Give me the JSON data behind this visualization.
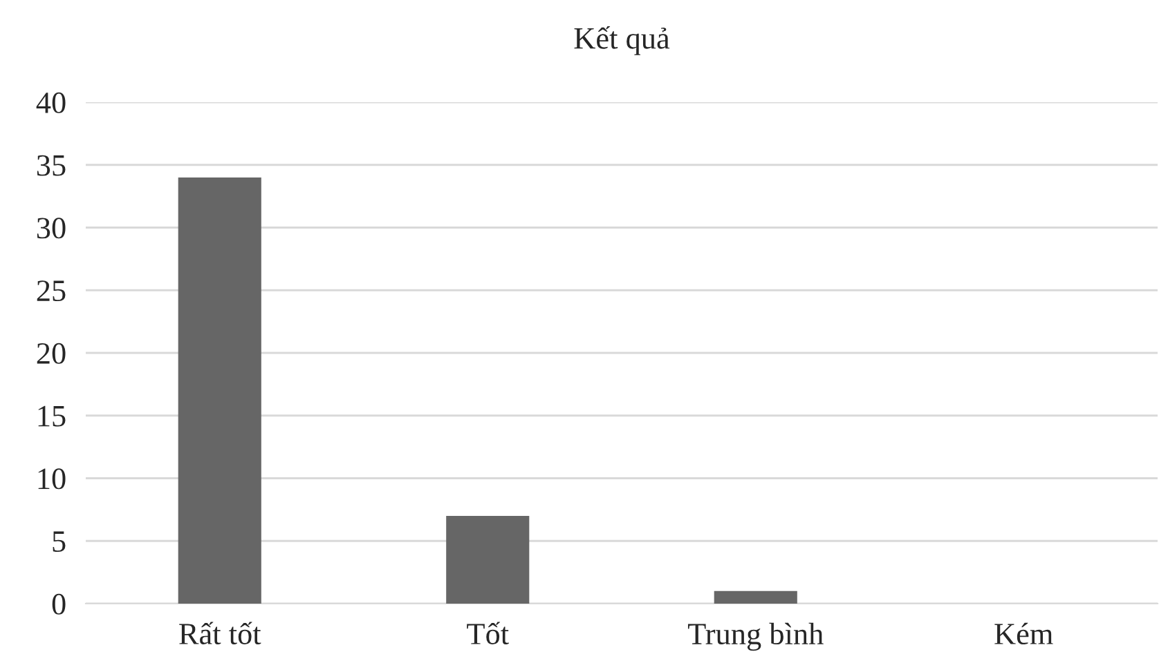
{
  "chart_data": {
    "type": "bar",
    "title": "Kết quả",
    "categories": [
      "Rất tốt",
      "Tốt",
      "Trung bình",
      "Kém"
    ],
    "values": [
      34,
      7,
      1,
      0
    ],
    "color": "#666666",
    "ylim": [
      0,
      40
    ],
    "yticks": [
      0,
      5,
      10,
      15,
      20,
      25,
      30,
      35,
      40
    ],
    "grid": "y",
    "legend": false
  }
}
